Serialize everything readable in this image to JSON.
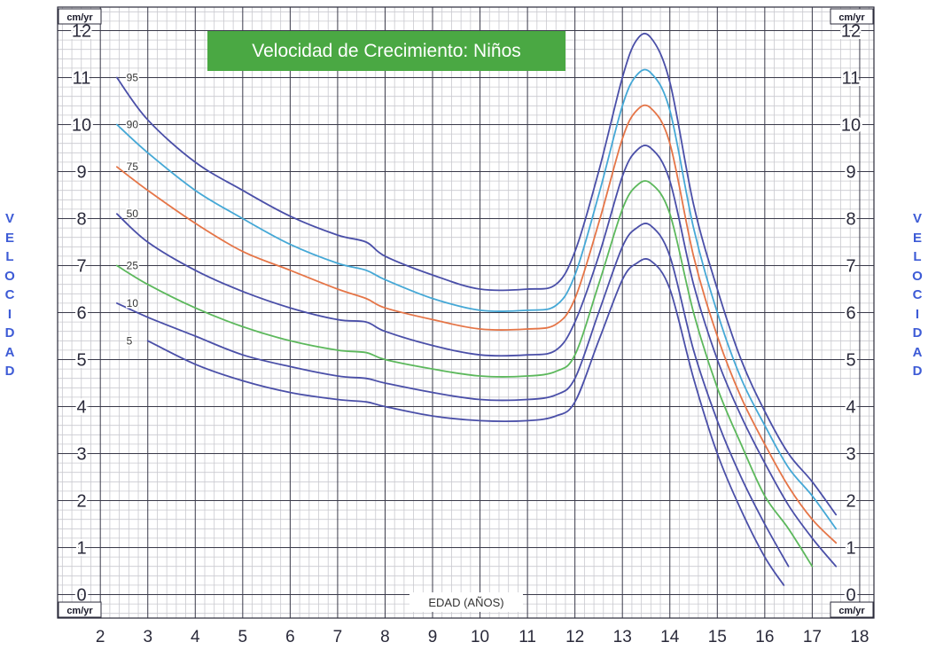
{
  "chart_data": {
    "type": "line",
    "title": "Velocidad de Crecimiento: Niños",
    "xlabel": "EDAD (AÑOS)",
    "ylabel": "VELOCIDAD",
    "y_unit": "cm/yr",
    "xlim": [
      1.1,
      18.3
    ],
    "ylim": [
      -0.5,
      12.5
    ],
    "x_ticks": [
      2,
      3,
      4,
      5,
      6,
      7,
      8,
      9,
      10,
      11,
      12,
      13,
      14,
      15,
      16,
      17,
      18
    ],
    "y_ticks": [
      0,
      1,
      2,
      3,
      4,
      5,
      6,
      7,
      8,
      9,
      10,
      11,
      12
    ],
    "grid": true,
    "title_color": "#4aa843",
    "series": [
      {
        "name": "95",
        "color": "#4a4fa8",
        "points": [
          [
            2.35,
            11.0
          ],
          [
            3.0,
            10.1
          ],
          [
            4.0,
            9.2
          ],
          [
            5.0,
            8.6
          ],
          [
            6.0,
            8.05
          ],
          [
            7.0,
            7.65
          ],
          [
            7.6,
            7.5
          ],
          [
            8.0,
            7.2
          ],
          [
            9.0,
            6.8
          ],
          [
            10.0,
            6.5
          ],
          [
            11.0,
            6.5
          ],
          [
            11.6,
            6.6
          ],
          [
            12.0,
            7.3
          ],
          [
            12.5,
            9.0
          ],
          [
            13.0,
            11.0
          ],
          [
            13.3,
            11.8
          ],
          [
            13.6,
            11.85
          ],
          [
            14.0,
            10.9
          ],
          [
            14.5,
            8.3
          ],
          [
            15.0,
            6.5
          ],
          [
            15.5,
            5.0
          ],
          [
            16.0,
            3.9
          ],
          [
            16.5,
            3.0
          ],
          [
            17.0,
            2.4
          ],
          [
            17.5,
            1.7
          ]
        ]
      },
      {
        "name": "90",
        "color": "#45a8d6",
        "points": [
          [
            2.35,
            10.0
          ],
          [
            3.0,
            9.4
          ],
          [
            4.0,
            8.6
          ],
          [
            5.0,
            8.0
          ],
          [
            6.0,
            7.45
          ],
          [
            7.0,
            7.05
          ],
          [
            7.6,
            6.9
          ],
          [
            8.0,
            6.7
          ],
          [
            9.0,
            6.3
          ],
          [
            10.0,
            6.05
          ],
          [
            11.0,
            6.05
          ],
          [
            11.6,
            6.15
          ],
          [
            12.0,
            6.8
          ],
          [
            12.5,
            8.5
          ],
          [
            13.0,
            10.4
          ],
          [
            13.3,
            11.05
          ],
          [
            13.6,
            11.1
          ],
          [
            14.0,
            10.3
          ],
          [
            14.5,
            7.8
          ],
          [
            15.0,
            6.0
          ],
          [
            15.5,
            4.6
          ],
          [
            16.0,
            3.6
          ],
          [
            16.5,
            2.7
          ],
          [
            17.0,
            2.1
          ],
          [
            17.5,
            1.4
          ]
        ]
      },
      {
        "name": "75",
        "color": "#e57547",
        "points": [
          [
            2.35,
            9.1
          ],
          [
            3.0,
            8.6
          ],
          [
            4.0,
            7.9
          ],
          [
            5.0,
            7.3
          ],
          [
            6.0,
            6.9
          ],
          [
            7.0,
            6.5
          ],
          [
            7.6,
            6.3
          ],
          [
            8.0,
            6.1
          ],
          [
            9.0,
            5.85
          ],
          [
            10.0,
            5.65
          ],
          [
            11.0,
            5.65
          ],
          [
            11.6,
            5.75
          ],
          [
            12.0,
            6.3
          ],
          [
            12.5,
            7.9
          ],
          [
            13.0,
            9.7
          ],
          [
            13.3,
            10.3
          ],
          [
            13.6,
            10.35
          ],
          [
            14.0,
            9.6
          ],
          [
            14.5,
            7.2
          ],
          [
            15.0,
            5.5
          ],
          [
            15.5,
            4.2
          ],
          [
            16.0,
            3.2
          ],
          [
            16.5,
            2.3
          ],
          [
            17.0,
            1.6
          ],
          [
            17.5,
            1.1
          ]
        ]
      },
      {
        "name": "50",
        "color": "#4a4fa8",
        "points": [
          [
            2.35,
            8.1
          ],
          [
            3.0,
            7.5
          ],
          [
            4.0,
            6.9
          ],
          [
            5.0,
            6.45
          ],
          [
            6.0,
            6.1
          ],
          [
            7.0,
            5.85
          ],
          [
            7.6,
            5.8
          ],
          [
            8.0,
            5.6
          ],
          [
            9.0,
            5.3
          ],
          [
            10.0,
            5.1
          ],
          [
            11.0,
            5.1
          ],
          [
            11.6,
            5.2
          ],
          [
            12.0,
            5.8
          ],
          [
            12.5,
            7.2
          ],
          [
            13.0,
            8.9
          ],
          [
            13.3,
            9.45
          ],
          [
            13.6,
            9.5
          ],
          [
            14.0,
            8.8
          ],
          [
            14.5,
            6.6
          ],
          [
            15.0,
            5.0
          ],
          [
            15.5,
            3.8
          ],
          [
            16.0,
            2.8
          ],
          [
            16.5,
            1.9
          ],
          [
            17.0,
            1.2
          ],
          [
            17.5,
            0.6
          ]
        ]
      },
      {
        "name": "25",
        "color": "#5cb85c",
        "points": [
          [
            2.35,
            7.0
          ],
          [
            3.0,
            6.6
          ],
          [
            4.0,
            6.1
          ],
          [
            5.0,
            5.7
          ],
          [
            6.0,
            5.4
          ],
          [
            7.0,
            5.2
          ],
          [
            7.6,
            5.15
          ],
          [
            8.0,
            5.0
          ],
          [
            9.0,
            4.8
          ],
          [
            10.0,
            4.65
          ],
          [
            11.0,
            4.65
          ],
          [
            11.6,
            4.75
          ],
          [
            12.0,
            5.1
          ],
          [
            12.5,
            6.6
          ],
          [
            13.0,
            8.2
          ],
          [
            13.3,
            8.7
          ],
          [
            13.6,
            8.75
          ],
          [
            14.0,
            8.1
          ],
          [
            14.5,
            6.0
          ],
          [
            15.0,
            4.4
          ],
          [
            15.5,
            3.2
          ],
          [
            16.0,
            2.1
          ],
          [
            16.5,
            1.4
          ],
          [
            17.0,
            0.6
          ]
        ]
      },
      {
        "name": "10",
        "color": "#4a4fa8",
        "points": [
          [
            2.35,
            6.2
          ],
          [
            3.0,
            5.9
          ],
          [
            4.0,
            5.5
          ],
          [
            5.0,
            5.1
          ],
          [
            6.0,
            4.85
          ],
          [
            7.0,
            4.65
          ],
          [
            7.6,
            4.6
          ],
          [
            8.0,
            4.5
          ],
          [
            9.0,
            4.3
          ],
          [
            10.0,
            4.15
          ],
          [
            11.0,
            4.15
          ],
          [
            11.6,
            4.25
          ],
          [
            12.0,
            4.6
          ],
          [
            12.5,
            6.0
          ],
          [
            13.0,
            7.4
          ],
          [
            13.3,
            7.8
          ],
          [
            13.6,
            7.85
          ],
          [
            14.0,
            7.2
          ],
          [
            14.5,
            5.2
          ],
          [
            15.0,
            3.7
          ],
          [
            15.5,
            2.5
          ],
          [
            16.0,
            1.5
          ],
          [
            16.5,
            0.6
          ]
        ]
      },
      {
        "name": "5",
        "color": "#4a4fa8",
        "points": [
          [
            3.0,
            5.4
          ],
          [
            4.0,
            4.9
          ],
          [
            5.0,
            4.55
          ],
          [
            6.0,
            4.3
          ],
          [
            7.0,
            4.15
          ],
          [
            7.6,
            4.1
          ],
          [
            8.0,
            4.0
          ],
          [
            9.0,
            3.8
          ],
          [
            10.0,
            3.7
          ],
          [
            11.0,
            3.7
          ],
          [
            11.6,
            3.8
          ],
          [
            12.0,
            4.1
          ],
          [
            12.5,
            5.4
          ],
          [
            13.0,
            6.7
          ],
          [
            13.3,
            7.05
          ],
          [
            13.6,
            7.1
          ],
          [
            14.0,
            6.5
          ],
          [
            14.5,
            4.6
          ],
          [
            15.0,
            3.0
          ],
          [
            15.5,
            1.8
          ],
          [
            16.0,
            0.8
          ],
          [
            16.4,
            0.2
          ]
        ]
      }
    ]
  },
  "side_labels": {
    "left": [
      "V",
      "E",
      "L",
      "O",
      "C",
      "I",
      "D",
      "A",
      "D"
    ],
    "right": [
      "V",
      "E",
      "L",
      "O",
      "C",
      "I",
      "D",
      "A",
      "D"
    ]
  }
}
